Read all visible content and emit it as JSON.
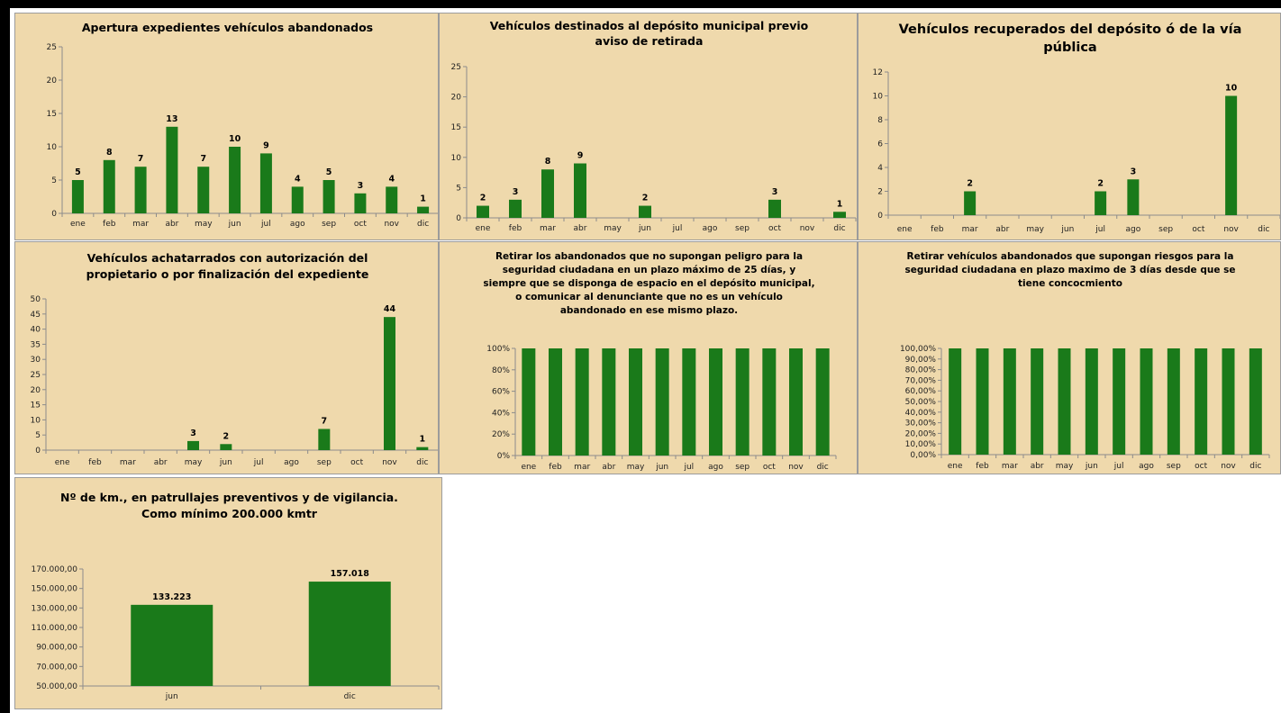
{
  "chart_data": [
    {
      "id": "c1",
      "type": "bar",
      "title": [
        "Apertura expedientes  vehículos abandonados"
      ],
      "categories": [
        "ene",
        "feb",
        "mar",
        "abr",
        "may",
        "jun",
        "jul",
        "ago",
        "sep",
        "oct",
        "nov",
        "dic"
      ],
      "values": [
        5,
        8,
        7,
        13,
        7,
        10,
        9,
        4,
        5,
        3,
        4,
        1
      ],
      "value_labels": [
        "5",
        "8",
        "7",
        "13",
        "7",
        "10",
        "9",
        "4",
        "5",
        "3",
        "4",
        "1"
      ],
      "yticks": [
        0,
        5,
        10,
        15,
        20,
        25
      ],
      "ytick_labels": [
        "0",
        "5",
        "10",
        "15",
        "20",
        "25"
      ],
      "ylim": [
        0,
        25
      ],
      "color": "#1a7a1a"
    },
    {
      "id": "c2",
      "type": "bar",
      "title": [
        "Vehículos destinados al depósito municipal previo",
        "aviso de retirada"
      ],
      "categories": [
        "ene",
        "feb",
        "mar",
        "abr",
        "may",
        "jun",
        "jul",
        "ago",
        "sep",
        "oct",
        "nov",
        "dic"
      ],
      "values": [
        2,
        3,
        8,
        9,
        0,
        2,
        0,
        0,
        0,
        3,
        0,
        1
      ],
      "value_labels": [
        "2",
        "3",
        "8",
        "9",
        "",
        "2",
        "",
        "",
        "",
        "3",
        "",
        "1"
      ],
      "yticks": [
        0,
        5,
        10,
        15,
        20,
        25
      ],
      "ytick_labels": [
        "0",
        "5",
        "10",
        "15",
        "20",
        "25"
      ],
      "ylim": [
        0,
        25
      ],
      "color": "#1a7a1a"
    },
    {
      "id": "c3",
      "type": "bar",
      "title": [
        "Vehículos recuperados  del depósito ó de la vía",
        "pública"
      ],
      "categories": [
        "ene",
        "feb",
        "mar",
        "abr",
        "may",
        "jun",
        "jul",
        "ago",
        "sep",
        "oct",
        "nov",
        "dic"
      ],
      "values": [
        0,
        0,
        2,
        0,
        0,
        0,
        2,
        3,
        0,
        0,
        10,
        0
      ],
      "value_labels": [
        "",
        "",
        "2",
        "",
        "",
        "",
        "2",
        "3",
        "",
        "",
        "10",
        ""
      ],
      "yticks": [
        0,
        2,
        4,
        6,
        8,
        10,
        12
      ],
      "ytick_labels": [
        "0",
        "2",
        "4",
        "6",
        "8",
        "10",
        "12"
      ],
      "ylim": [
        0,
        12
      ],
      "color": "#1a7a1a"
    },
    {
      "id": "c4",
      "type": "bar",
      "title": [
        "Vehículos achatarrados con autorización del",
        "propietario o por finalización del expediente"
      ],
      "categories": [
        "ene",
        "feb",
        "mar",
        "abr",
        "may",
        "jun",
        "jul",
        "ago",
        "sep",
        "oct",
        "nov",
        "dic"
      ],
      "values": [
        0,
        0,
        0,
        0,
        3,
        2,
        0,
        0,
        7,
        0,
        44,
        1
      ],
      "value_labels": [
        "",
        "",
        "",
        "",
        "3",
        "2",
        "",
        "",
        "7",
        "",
        "44",
        "1"
      ],
      "yticks": [
        0,
        5,
        10,
        15,
        20,
        25,
        30,
        35,
        40,
        45,
        50
      ],
      "ytick_labels": [
        "0",
        "5",
        "10",
        "15",
        "20",
        "25",
        "30",
        "35",
        "40",
        "45",
        "50"
      ],
      "ylim": [
        0,
        50
      ],
      "color": "#1a7a1a"
    },
    {
      "id": "c5",
      "type": "bar",
      "title": [
        "Retirar los abandonados que no supongan peligro para la",
        "seguridad ciudadana en un plazo máximo de 25 días, y",
        "siempre que se disponga de espacio en el depósito municipal,",
        "o comunicar al denunciante que no es un vehículo",
        "abandonado en ese mismo plazo."
      ],
      "categories": [
        "ene",
        "feb",
        "mar",
        "abr",
        "may",
        "jun",
        "jul",
        "ago",
        "sep",
        "oct",
        "nov",
        "dic"
      ],
      "values": [
        100,
        100,
        100,
        100,
        100,
        100,
        100,
        100,
        100,
        100,
        100,
        100
      ],
      "value_labels": [
        "",
        "",
        "",
        "",
        "",
        "",
        "",
        "",
        "",
        "",
        "",
        ""
      ],
      "yticks": [
        0,
        20,
        40,
        60,
        80,
        100
      ],
      "ytick_labels": [
        "0%",
        "20%",
        "40%",
        "60%",
        "80%",
        "100%"
      ],
      "ylim": [
        0,
        100
      ],
      "color": "#1a7a1a"
    },
    {
      "id": "c6",
      "type": "bar",
      "title": [
        "Retirar vehículos abandonados que supongan riesgos para la",
        "seguridad ciudadana en plazo maximo de 3 días desde que se",
        "tiene concocmiento"
      ],
      "categories": [
        "ene",
        "feb",
        "mar",
        "abr",
        "may",
        "jun",
        "jul",
        "ago",
        "sep",
        "oct",
        "nov",
        "dic"
      ],
      "values": [
        100,
        100,
        100,
        100,
        100,
        100,
        100,
        100,
        100,
        100,
        100,
        100
      ],
      "value_labels": [
        "",
        "",
        "",
        "",
        "",
        "",
        "",
        "",
        "",
        "",
        "",
        ""
      ],
      "yticks": [
        0,
        10,
        20,
        30,
        40,
        50,
        60,
        70,
        80,
        90,
        100
      ],
      "ytick_labels": [
        "0,00%",
        "10,00%",
        "20,00%",
        "30,00%",
        "40,00%",
        "50,00%",
        "60,00%",
        "70,00%",
        "80,00%",
        "90,00%",
        "100,00%"
      ],
      "ylim": [
        0,
        100
      ],
      "color": "#1a7a1a"
    },
    {
      "id": "c7",
      "type": "bar",
      "title": [
        "Nº de km., en patrullajes preventivos y de vigilancia.",
        "Como mínimo 200.000 kmtr"
      ],
      "categories": [
        "jun",
        "dic"
      ],
      "values": [
        133223,
        157018
      ],
      "value_labels": [
        "133.223",
        "157.018"
      ],
      "yticks": [
        50000,
        70000,
        90000,
        110000,
        130000,
        150000,
        170000
      ],
      "ytick_labels": [
        "50.000,00",
        "70.000,00",
        "90.000,00",
        "110.000,00",
        "130.000,00",
        "150.000,00",
        "170.000,00"
      ],
      "ylim": [
        50000,
        170000
      ],
      "color": "#1a7a1a"
    }
  ]
}
